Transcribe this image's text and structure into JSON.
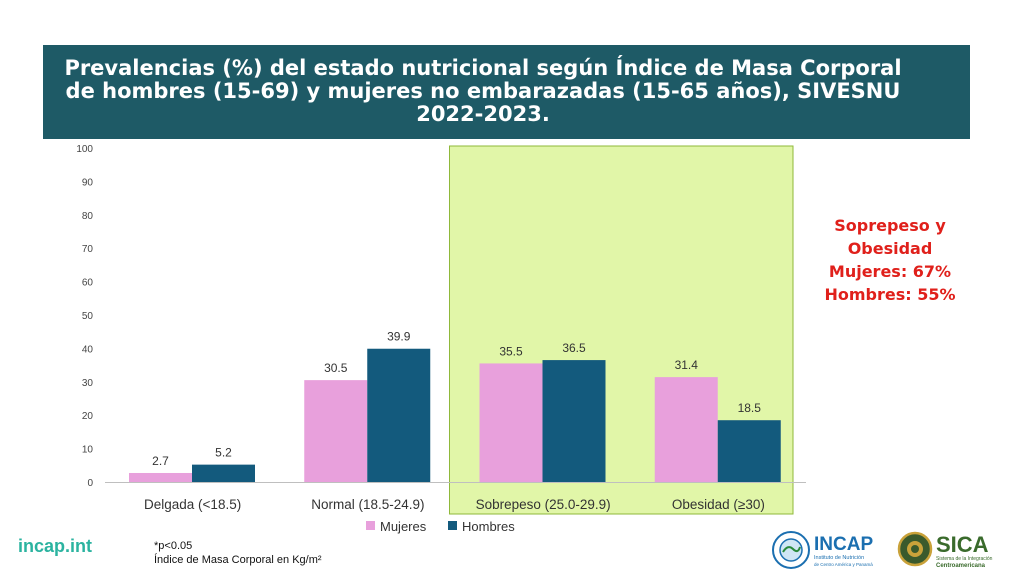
{
  "title": {
    "line1": "Prevalencias (%) del estado nutricional según Índice de Masa Corporal",
    "line2": "de hombres (15-69) y mujeres no embarazadas (15-65 años), SIVESNU",
    "line3": "2022-2023."
  },
  "colors": {
    "banner": "#1e5a66",
    "mujeres": "#e8a0dc",
    "hombres": "#135a7d",
    "highlight": "#e1f6a8",
    "note": "#e0201b",
    "site": "#2bb3a0"
  },
  "chart_data": {
    "type": "bar",
    "categories": [
      "Delgada (<18.5)",
      "Normal (18.5-24.9)",
      "Sobrepeso (25.0-29.9)",
      "Obesidad (≥30)"
    ],
    "series": [
      {
        "name": "Mujeres",
        "values": [
          2.7,
          30.5,
          35.5,
          31.4
        ],
        "labels": [
          "2.7",
          "30.5",
          "35.5",
          "31.4"
        ]
      },
      {
        "name": "Hombres",
        "values": [
          5.2,
          39.9,
          36.5,
          18.5
        ],
        "labels": [
          "5.2",
          "39.9",
          "36.5",
          "18.5"
        ]
      }
    ],
    "ylim": [
      0,
      100
    ],
    "yticks": [
      "0",
      "10",
      "20",
      "30",
      "40",
      "50",
      "60",
      "70",
      "80",
      "90",
      "100"
    ],
    "legend_position": "bottom",
    "highlighted_categories": [
      "Sobrepeso (25.0-29.9)",
      "Obesidad (≥30)"
    ]
  },
  "side_note": {
    "line1": "Soprepeso y",
    "line2": "Obesidad",
    "line3": "Mujeres: 67%",
    "line4": "Hombres: 55%"
  },
  "footer": {
    "site": "incap.int",
    "note1": "*p<0.05",
    "note2": "Índice de Masa Corporal en Kg/m²",
    "logo1_name": "INCAP",
    "logo1_sub1": "Instituto de Nutrición",
    "logo1_sub2": "de Centro América y Panamá",
    "logo2_name": "SICA",
    "logo2_sub1": "Sistema de la Integración",
    "logo2_sub2": "Centroamericana"
  }
}
